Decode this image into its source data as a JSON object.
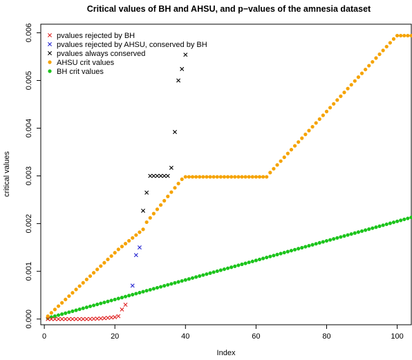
{
  "chart_data": {
    "type": "scatter",
    "title": "Critical values of BH and AHSU, and p−values of the amnesia dataset",
    "xlabel": "Index",
    "ylabel": "critical values",
    "xlim": [
      -1,
      104
    ],
    "ylim": [
      -0.00012,
      0.00618
    ],
    "x_ticks": [
      0,
      20,
      40,
      60,
      80,
      100
    ],
    "x_tick_labels": [
      "0",
      "20",
      "40",
      "60",
      "80",
      "100"
    ],
    "y_ticks": [
      0,
      0.001,
      0.002,
      0.003,
      0.004,
      0.005,
      0.006
    ],
    "y_tick_labels": [
      "0.000",
      "0.001",
      "0.002",
      "0.003",
      "0.004",
      "0.005",
      "0.006"
    ],
    "grid": false,
    "legend_position": "top-left",
    "legend": [
      {
        "label": "pvalues rejected by BH",
        "marker": "x",
        "color": "#df2020"
      },
      {
        "label": "pvalues rejected by AHSU, conserved by BH",
        "marker": "x",
        "color": "#2020d0"
      },
      {
        "label": "pvalues always conserved",
        "marker": "x",
        "color": "#000000"
      },
      {
        "label": "AHSU crit values",
        "marker": "dot",
        "color": "#f5a300"
      },
      {
        "label": "BH crit values",
        "marker": "dot",
        "color": "#1cc41c"
      }
    ],
    "series": [
      {
        "name": "pvalues rejected by BH",
        "marker": "x",
        "color": "#df2020",
        "x": [
          1,
          2,
          3,
          4,
          5,
          6,
          7,
          8,
          9,
          10,
          11,
          12,
          13,
          14,
          15,
          16,
          17,
          18,
          19,
          20,
          21,
          22,
          23
        ],
        "y": [
          0,
          0,
          0,
          0,
          0,
          0,
          0,
          0,
          0,
          0,
          0,
          0,
          2e-06,
          5e-06,
          8e-06,
          1.2e-05,
          1.8e-05,
          2.5e-05,
          3.2e-05,
          4e-05,
          6e-05,
          0.0002,
          0.0003
        ]
      },
      {
        "name": "pvalues rejected by AHSU, conserved by BH",
        "marker": "x",
        "color": "#2020d0",
        "x": [
          25,
          26,
          27
        ],
        "y": [
          0.0007,
          0.00134,
          0.0015
        ]
      },
      {
        "name": "pvalues always conserved",
        "marker": "x",
        "color": "#000000",
        "x": [
          28,
          29,
          30,
          31,
          32,
          33,
          34,
          35,
          36,
          37,
          38,
          39,
          40
        ],
        "y": [
          0.00227,
          0.00265,
          0.003,
          0.003,
          0.003,
          0.003,
          0.003,
          0.003,
          0.00317,
          0.00392,
          0.005,
          0.00524,
          0.00554
        ]
      },
      {
        "name": "AHSU crit values",
        "marker": "dot",
        "color": "#f5a300",
        "x": [
          1,
          2,
          3,
          4,
          5,
          6,
          7,
          8,
          9,
          10,
          11,
          12,
          13,
          14,
          15,
          16,
          17,
          18,
          19,
          20,
          21,
          22,
          23,
          24,
          25,
          26,
          27,
          28,
          29,
          30,
          31,
          32,
          33,
          34,
          35,
          36,
          37,
          38,
          39,
          40,
          41,
          42,
          43,
          44,
          45,
          46,
          47,
          48,
          49,
          50,
          51,
          52,
          53,
          54,
          55,
          56,
          57,
          58,
          59,
          60,
          61,
          62,
          63,
          64,
          65,
          66,
          67,
          68,
          69,
          70,
          71,
          72,
          73,
          74,
          75,
          76,
          77,
          78,
          79,
          80,
          81,
          82,
          83,
          84,
          85,
          86,
          87,
          88,
          89,
          90,
          91,
          92,
          93,
          94,
          95,
          96,
          97,
          98,
          99,
          100,
          101,
          102,
          103,
          104
        ],
        "y": [
          6e-05,
          0.00013,
          0.0002,
          0.00027,
          0.00034,
          0.00041,
          0.00048,
          0.00055,
          0.00062,
          0.00069,
          0.00076,
          0.00083,
          0.0009,
          0.00097,
          0.00104,
          0.00111,
          0.00118,
          0.00125,
          0.00132,
          0.00139,
          0.00146,
          0.00152,
          0.00158,
          0.00164,
          0.0017,
          0.00176,
          0.00182,
          0.00188,
          0.00203,
          0.00212,
          0.00221,
          0.0023,
          0.00239,
          0.00248,
          0.00257,
          0.00266,
          0.00275,
          0.00284,
          0.00293,
          0.00298,
          0.00298,
          0.00298,
          0.00298,
          0.00298,
          0.00298,
          0.00298,
          0.00298,
          0.00298,
          0.00298,
          0.00298,
          0.00298,
          0.00298,
          0.00298,
          0.00298,
          0.00298,
          0.00298,
          0.00298,
          0.00298,
          0.00298,
          0.00298,
          0.00298,
          0.00298,
          0.00298,
          0.00307,
          0.00315,
          0.00323,
          0.00331,
          0.00339,
          0.00347,
          0.00355,
          0.00363,
          0.00371,
          0.00379,
          0.00387,
          0.00395,
          0.00403,
          0.00411,
          0.00419,
          0.00427,
          0.00435,
          0.00443,
          0.00451,
          0.00459,
          0.00467,
          0.00475,
          0.00483,
          0.00491,
          0.00499,
          0.00507,
          0.00515,
          0.00523,
          0.00531,
          0.00539,
          0.00547,
          0.00555,
          0.00563,
          0.00571,
          0.00579,
          0.00587,
          0.00594,
          0.00594,
          0.00594,
          0.00594,
          0.00594
        ]
      },
      {
        "name": "BH crit values",
        "marker": "dot",
        "color": "#1cc41c",
        "x_start": 1,
        "x_end": 104,
        "y_start": 2.05e-05,
        "y_end": 0.00213
      }
    ]
  }
}
